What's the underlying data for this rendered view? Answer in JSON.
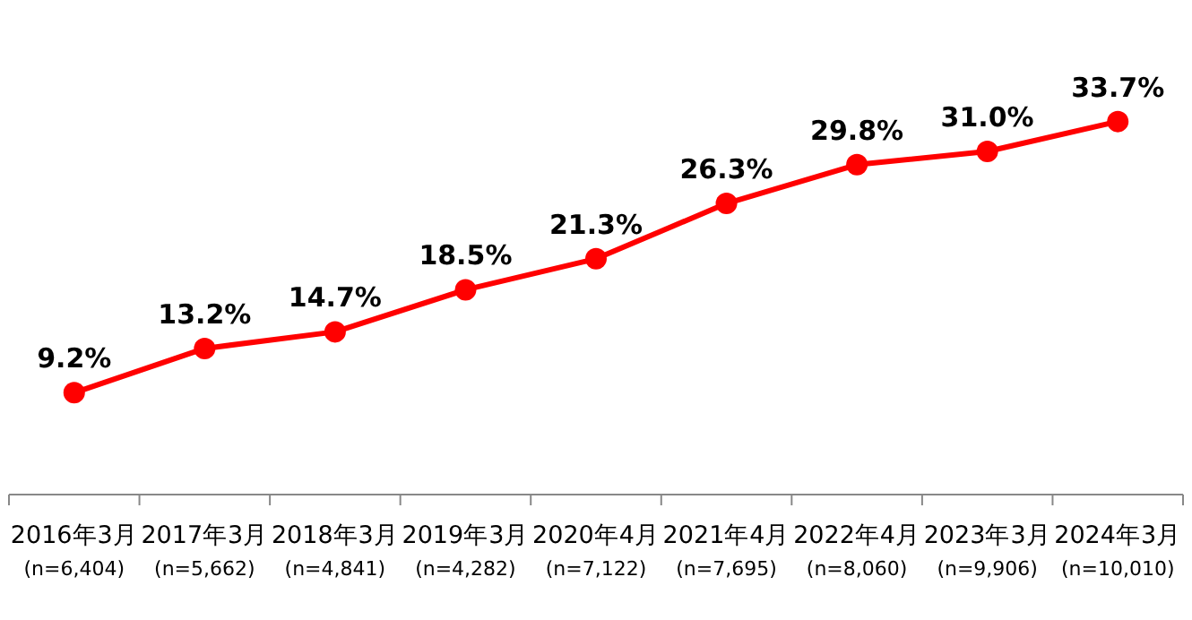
{
  "chart_data": {
    "type": "line",
    "categories": [
      "2016年3月\n(n=6,404)",
      "2017年3月\n(n=5,662)",
      "2018年3月\n(n=4,841)",
      "2019年3月\n(n=4,282)",
      "2020年4月\n(n=7,122)",
      "2021年4月\n(n=7,695)",
      "2022年4月\n(n=8,060)",
      "2023年3月\n(n=9,906)",
      "2024年3月\n(n=10,010)"
    ],
    "series": [
      {
        "color": "#ff0000",
        "values": [
          9.2,
          13.2,
          14.7,
          18.5,
          21.3,
          26.3,
          29.8,
          31.0,
          33.7
        ],
        "value_labels": [
          "9.2%",
          "13.2%",
          "14.7%",
          "18.5%",
          "21.3%",
          "26.3%",
          "29.8%",
          "31.0%",
          "33.7%"
        ]
      }
    ],
    "marker": "circle",
    "line_style": "solid"
  }
}
